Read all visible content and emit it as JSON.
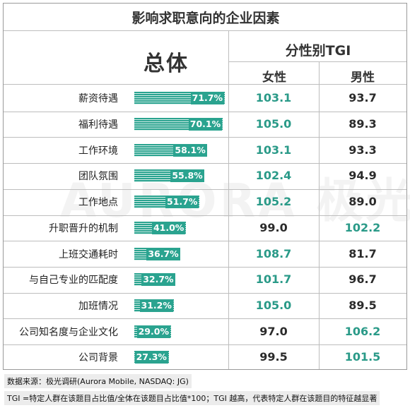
{
  "chart_data": {
    "type": "table",
    "title": "影响求职意向的企业因素",
    "overall_header": "总体",
    "tgi_header": "分性别TGI",
    "column_headers": [
      "女性",
      "男性"
    ],
    "colors": {
      "accent": "#2aa38f",
      "highlight_text": "#2a9a88"
    },
    "rows": [
      {
        "label": "薪资待遇",
        "overall": 71.7,
        "overall_text": "71.7%",
        "female": "103.1",
        "male": "93.7",
        "female_hi": true,
        "male_hi": false
      },
      {
        "label": "福利待遇",
        "overall": 70.1,
        "overall_text": "70.1%",
        "female": "105.0",
        "male": "89.3",
        "female_hi": true,
        "male_hi": false
      },
      {
        "label": "工作环境",
        "overall": 58.1,
        "overall_text": "58.1%",
        "female": "103.1",
        "male": "93.3",
        "female_hi": true,
        "male_hi": false
      },
      {
        "label": "团队氛围",
        "overall": 55.8,
        "overall_text": "55.8%",
        "female": "102.4",
        "male": "94.9",
        "female_hi": true,
        "male_hi": false
      },
      {
        "label": "工作地点",
        "overall": 51.7,
        "overall_text": "51.7%",
        "female": "105.2",
        "male": "89.0",
        "female_hi": true,
        "male_hi": false
      },
      {
        "label": "升职晋升的机制",
        "overall": 41.0,
        "overall_text": "41.0%",
        "female": "99.0",
        "male": "102.2",
        "female_hi": false,
        "male_hi": true
      },
      {
        "label": "上班交通耗时",
        "overall": 36.7,
        "overall_text": "36.7%",
        "female": "108.7",
        "male": "81.7",
        "female_hi": true,
        "male_hi": false
      },
      {
        "label": "与自己专业的匹配度",
        "overall": 32.7,
        "overall_text": "32.7%",
        "female": "101.7",
        "male": "96.7",
        "female_hi": true,
        "male_hi": false
      },
      {
        "label": "加班情况",
        "overall": 31.2,
        "overall_text": "31.2%",
        "female": "105.0",
        "male": "89.5",
        "female_hi": true,
        "male_hi": false
      },
      {
        "label": "公司知名度与企业文化",
        "overall": 29.0,
        "overall_text": "29.0%",
        "female": "97.0",
        "male": "106.2",
        "female_hi": false,
        "male_hi": true
      },
      {
        "label": "公司背景",
        "overall": 27.3,
        "overall_text": "27.3%",
        "female": "99.5",
        "male": "101.5",
        "female_hi": false,
        "male_hi": true
      }
    ],
    "watermark": "AURORA 极光",
    "footnotes": [
      "数据来源：极光调研(Aurora Mobile, NASDAQ: JG)",
      "TGI =特定人群在该题目占比值/全体在该题目占比值*100；TGI 越高，代表特定人群在该题目的特征越显著"
    ]
  }
}
